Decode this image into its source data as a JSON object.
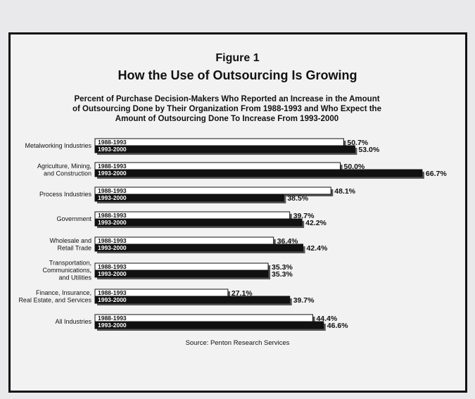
{
  "figure_label": "Figure 1",
  "chart_data": {
    "type": "bar",
    "orientation": "horizontal",
    "title": "How the Use of Outsourcing Is Growing",
    "subtitle": "Percent of Purchase Decision-Makers Who Reported an Increase in the Amount of Outsourcing Done by Their Organization From 1988-1993 and Who Expect the Amount of Outsourcing Done To Increase From 1993-2000",
    "categories": [
      [
        "Metalworking Industries"
      ],
      [
        "Agriculture, Mining,",
        "and Construction"
      ],
      [
        "Process Industries"
      ],
      [
        "Government"
      ],
      [
        "Wholesale and",
        "Retail Trade"
      ],
      [
        "Transportation,",
        "Communications,",
        "and Utilities"
      ],
      [
        "Finance, Insurance,",
        "Real Estate, and Services"
      ],
      [
        "All Industries"
      ]
    ],
    "series": [
      {
        "name": "1988-1993",
        "color": "#ffffff",
        "values": [
          50.7,
          50.0,
          48.1,
          39.7,
          36.4,
          35.3,
          27.1,
          44.4
        ],
        "labels": [
          "50.7%",
          "50.0%",
          "48.1%",
          "39.7%",
          "36.4%",
          "35.3%",
          "27.1%",
          "44.4%"
        ]
      },
      {
        "name": "1993-2000",
        "color": "#111111",
        "values": [
          53.0,
          66.7,
          38.5,
          42.2,
          42.4,
          35.3,
          39.7,
          46.6
        ],
        "labels": [
          "53.0%",
          "66.7%",
          "38.5%",
          "42.2%",
          "42.4%",
          "35.3%",
          "39.7%",
          "46.6%"
        ]
      }
    ],
    "xlim": [
      0,
      70
    ],
    "source": "Source:  Penton Research Services"
  }
}
